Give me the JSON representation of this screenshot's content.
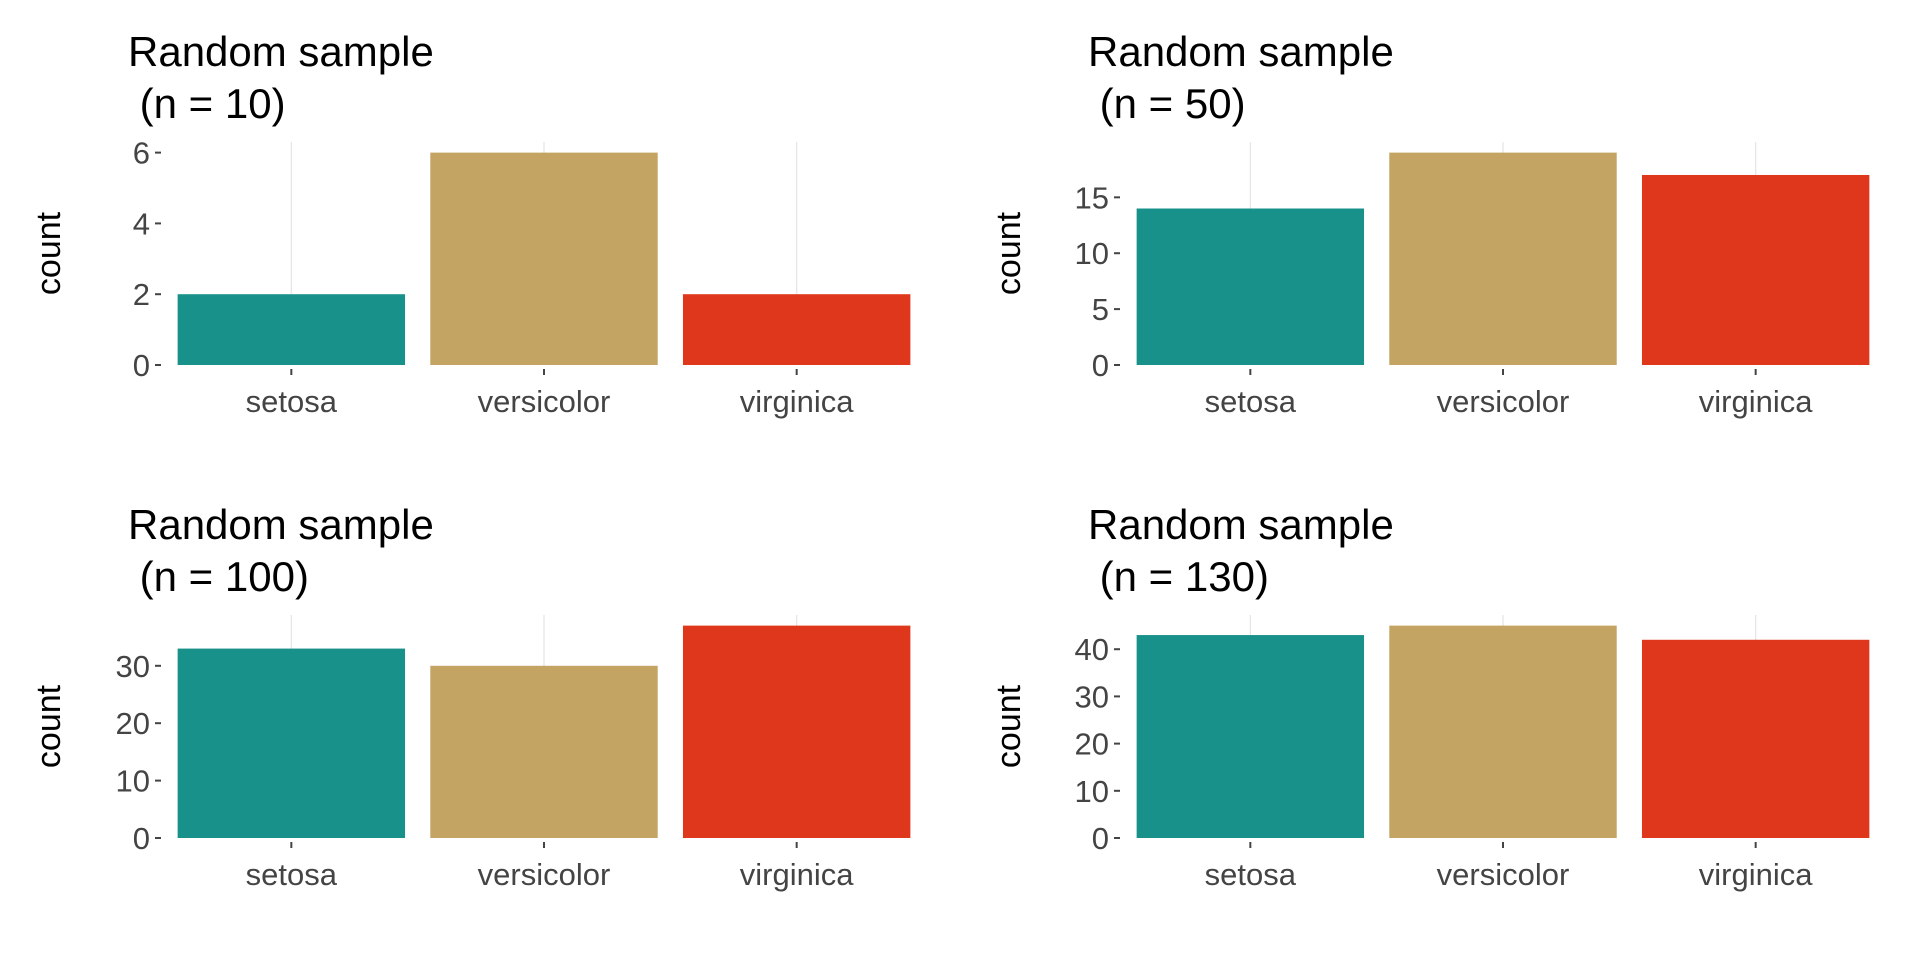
{
  "chart_data": [
    {
      "type": "bar",
      "title": "Random sample\n (n = 10)",
      "xlabel": "",
      "ylabel": "count",
      "categories": [
        "setosa",
        "versicolor",
        "virginica"
      ],
      "values": [
        2,
        6,
        2
      ],
      "ylim": [
        0,
        6.3
      ],
      "yticks": [
        0,
        2,
        4,
        6
      ],
      "colors": [
        "#18918a",
        "#c3a462",
        "#df371c"
      ],
      "grid": "vertical"
    },
    {
      "type": "bar",
      "title": "Random sample\n (n = 50)",
      "xlabel": "",
      "ylabel": "count",
      "categories": [
        "setosa",
        "versicolor",
        "virginica"
      ],
      "values": [
        14,
        19,
        17
      ],
      "ylim": [
        0,
        19.95
      ],
      "yticks": [
        0,
        5,
        10,
        15
      ],
      "colors": [
        "#18918a",
        "#c3a462",
        "#df371c"
      ],
      "grid": "vertical"
    },
    {
      "type": "bar",
      "title": "Random sample\n (n = 100)",
      "xlabel": "",
      "ylabel": "count",
      "categories": [
        "setosa",
        "versicolor",
        "virginica"
      ],
      "values": [
        33,
        30,
        37
      ],
      "ylim": [
        0,
        38.85
      ],
      "yticks": [
        0,
        10,
        20,
        30
      ],
      "colors": [
        "#18918a",
        "#c3a462",
        "#df371c"
      ],
      "grid": "vertical"
    },
    {
      "type": "bar",
      "title": "Random sample\n (n = 130)",
      "xlabel": "",
      "ylabel": "count",
      "categories": [
        "setosa",
        "versicolor",
        "virginica"
      ],
      "values": [
        43,
        45,
        42
      ],
      "ylim": [
        0,
        47.25
      ],
      "yticks": [
        0,
        10,
        20,
        30,
        40
      ],
      "colors": [
        "#18918a",
        "#c3a462",
        "#df371c"
      ],
      "grid": "vertical"
    }
  ]
}
